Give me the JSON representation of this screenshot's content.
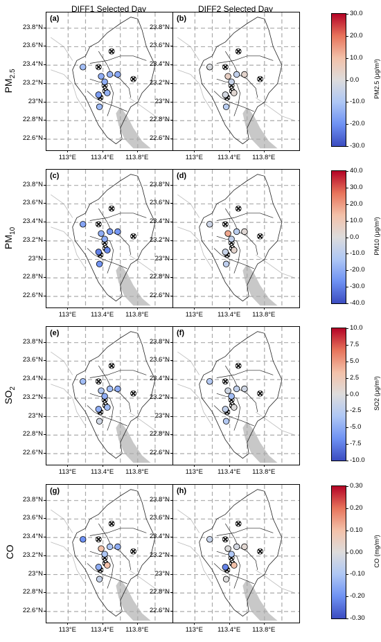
{
  "column_titles": [
    "DIFF1 Selected Day",
    "DIFF2 Selected Day"
  ],
  "y_ticks": [
    "23.8°N",
    "23.6°N",
    "23.4°N",
    "23.2°N",
    "23°N",
    "22.8°N",
    "22.6°N"
  ],
  "x_ticks": [
    "113°E",
    "113.4°E",
    "113.8°E"
  ],
  "rows": [
    {
      "label_main": "PM",
      "label_sub": "2.5",
      "panels": [
        "(a)",
        "(b)"
      ],
      "cbar_label": "PM2.5 (μg/m³)",
      "cbar_ticks": [
        "30.0",
        "20.0",
        "10.0",
        "0.0",
        "-10.0",
        "-20.0",
        "-30.0"
      ],
      "cbar_range": [
        -30,
        30
      ],
      "values": [
        [
          -12,
          -15,
          -14,
          -16,
          -18,
          -14,
          -13,
          -15
        ],
        [
          -1,
          5,
          -6,
          3,
          -2,
          2,
          -8,
          -5
        ]
      ]
    },
    {
      "label_main": "PM",
      "label_sub": "10",
      "panels": [
        "(c)",
        "(d)"
      ],
      "cbar_label": "PM10 (μg/m³)",
      "cbar_ticks": [
        "40.0",
        "30.0",
        "20.0",
        "10.0",
        "0.0",
        "-10.0",
        "-20.0",
        "-30.0",
        "-40.0"
      ],
      "cbar_range": [
        -40,
        40
      ],
      "values": [
        [
          -22,
          -20,
          -24,
          -25,
          -30,
          -28,
          -26,
          -20
        ],
        [
          -5,
          18,
          -10,
          2,
          -6,
          4,
          -9,
          -8
        ]
      ]
    },
    {
      "label_main": "SO",
      "label_sub": "2",
      "panels": [
        "(e)",
        "(f)"
      ],
      "cbar_label": "SO2 (μg/m³)",
      "cbar_ticks": [
        "10.0",
        "7.5",
        "5.0",
        "2.5",
        "0.0",
        "-2.5",
        "-5.0",
        "-7.5",
        "-10.0"
      ],
      "cbar_range": [
        -10,
        10
      ],
      "values": [
        [
          -4,
          -3,
          -4,
          -5,
          -5,
          -4,
          -1,
          -5
        ],
        [
          -3,
          -1,
          -2,
          -1,
          -2,
          0,
          -3,
          -4
        ]
      ]
    },
    {
      "label_main": "CO",
      "label_sub": "",
      "panels": [
        "(g)",
        "(h)"
      ],
      "cbar_label": "CO (mg/m³)",
      "cbar_ticks": [
        "0.30",
        "0.20",
        "0.10",
        "0.00",
        "-0.10",
        "-0.20",
        "-0.30"
      ],
      "cbar_range": [
        -0.3,
        0.3
      ],
      "values": [
        [
          -0.2,
          0.1,
          -0.1,
          -0.15,
          -0.15,
          0.1,
          -0.05,
          -0.1
        ],
        [
          -0.05,
          0.0,
          -0.02,
          0.02,
          -0.22,
          0.1,
          0.0,
          -0.1
        ]
      ]
    }
  ]
}
